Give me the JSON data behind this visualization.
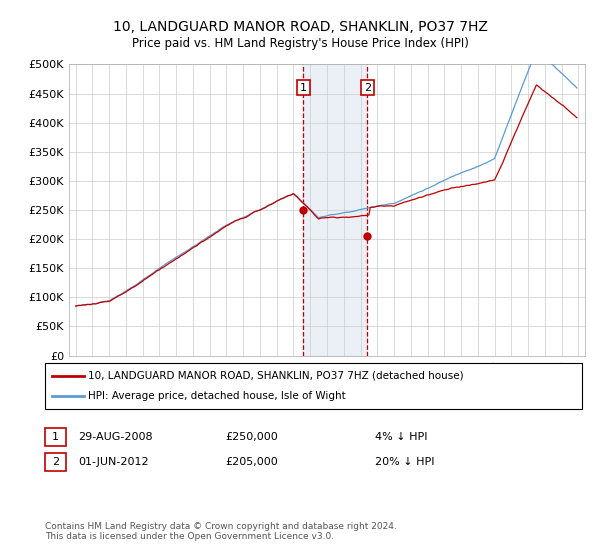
{
  "title": "10, LANDGUARD MANOR ROAD, SHANKLIN, PO37 7HZ",
  "subtitle": "Price paid vs. HM Land Registry's House Price Index (HPI)",
  "legend_line1": "10, LANDGUARD MANOR ROAD, SHANKLIN, PO37 7HZ (detached house)",
  "legend_line2": "HPI: Average price, detached house, Isle of Wight",
  "annotation1": {
    "label": "1",
    "date": "29-AUG-2008",
    "price": 250000,
    "text": "4% ↓ HPI"
  },
  "annotation2": {
    "label": "2",
    "date": "01-JUN-2012",
    "price": 205000,
    "text": "20% ↓ HPI"
  },
  "footer": "Contains HM Land Registry data © Crown copyright and database right 2024.\nThis data is licensed under the Open Government Licence v3.0.",
  "hpi_color": "#5b9bd5",
  "price_color": "#c00000",
  "shade_color": "#dce6f1",
  "annotation_line_color": "#c00000",
  "ylim": [
    0,
    500000
  ],
  "yticks": [
    0,
    50000,
    100000,
    150000,
    200000,
    250000,
    300000,
    350000,
    400000,
    450000,
    500000
  ],
  "start_year": 1995,
  "end_year": 2025,
  "sale1_t": 2008.583,
  "sale1_price": 250000,
  "sale2_t": 2012.417,
  "sale2_price": 205000,
  "background_color": "#ffffff"
}
